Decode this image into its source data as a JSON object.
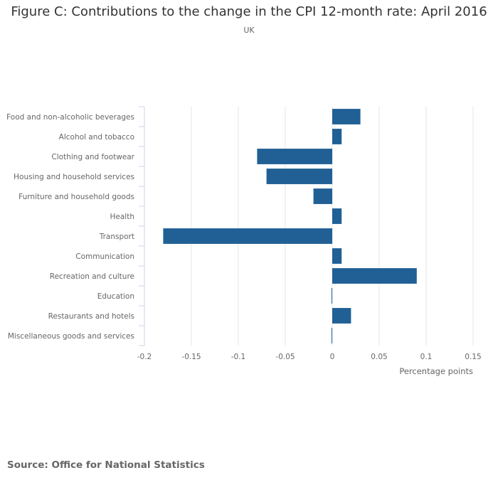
{
  "title": "Figure C: Contributions to the change in the CPI 12-month rate: April 2016",
  "subtitle": "UK",
  "source": "Source: Office for National Statistics",
  "colors": {
    "bar": "#206095",
    "grid": "#e6e6e6",
    "axis": "#ccd6eb"
  },
  "chart_data": {
    "type": "bar",
    "orientation": "horizontal",
    "title": "Figure C: Contributions to the change in the CPI 12-month rate: April 2016",
    "subtitle": "UK",
    "xlabel": "Percentage points",
    "ylabel": "",
    "categories": [
      "Food and non-alcoholic beverages",
      "Alcohol and tobacco",
      "Clothing and footwear",
      "Housing and household services",
      "Furniture and household goods",
      "Health",
      "Transport",
      "Communication",
      "Recreation and culture",
      "Education",
      "Restaurants and hotels",
      "Miscellaneous goods and services"
    ],
    "values": [
      0.03,
      0.01,
      -0.08,
      -0.07,
      -0.02,
      0.01,
      -0.18,
      0.01,
      0.09,
      0.0,
      0.02,
      0.0
    ],
    "xlim": [
      -0.2,
      0.15
    ],
    "xticks": [
      -0.2,
      -0.15,
      -0.1,
      -0.05,
      0,
      0.05,
      0.1,
      0.15
    ],
    "xtick_labels": [
      "-0.2",
      "-0.15",
      "-0.1",
      "-0.05",
      "0",
      "0.05",
      "0.1",
      "0.15"
    ],
    "grid": true,
    "legend": "none"
  }
}
